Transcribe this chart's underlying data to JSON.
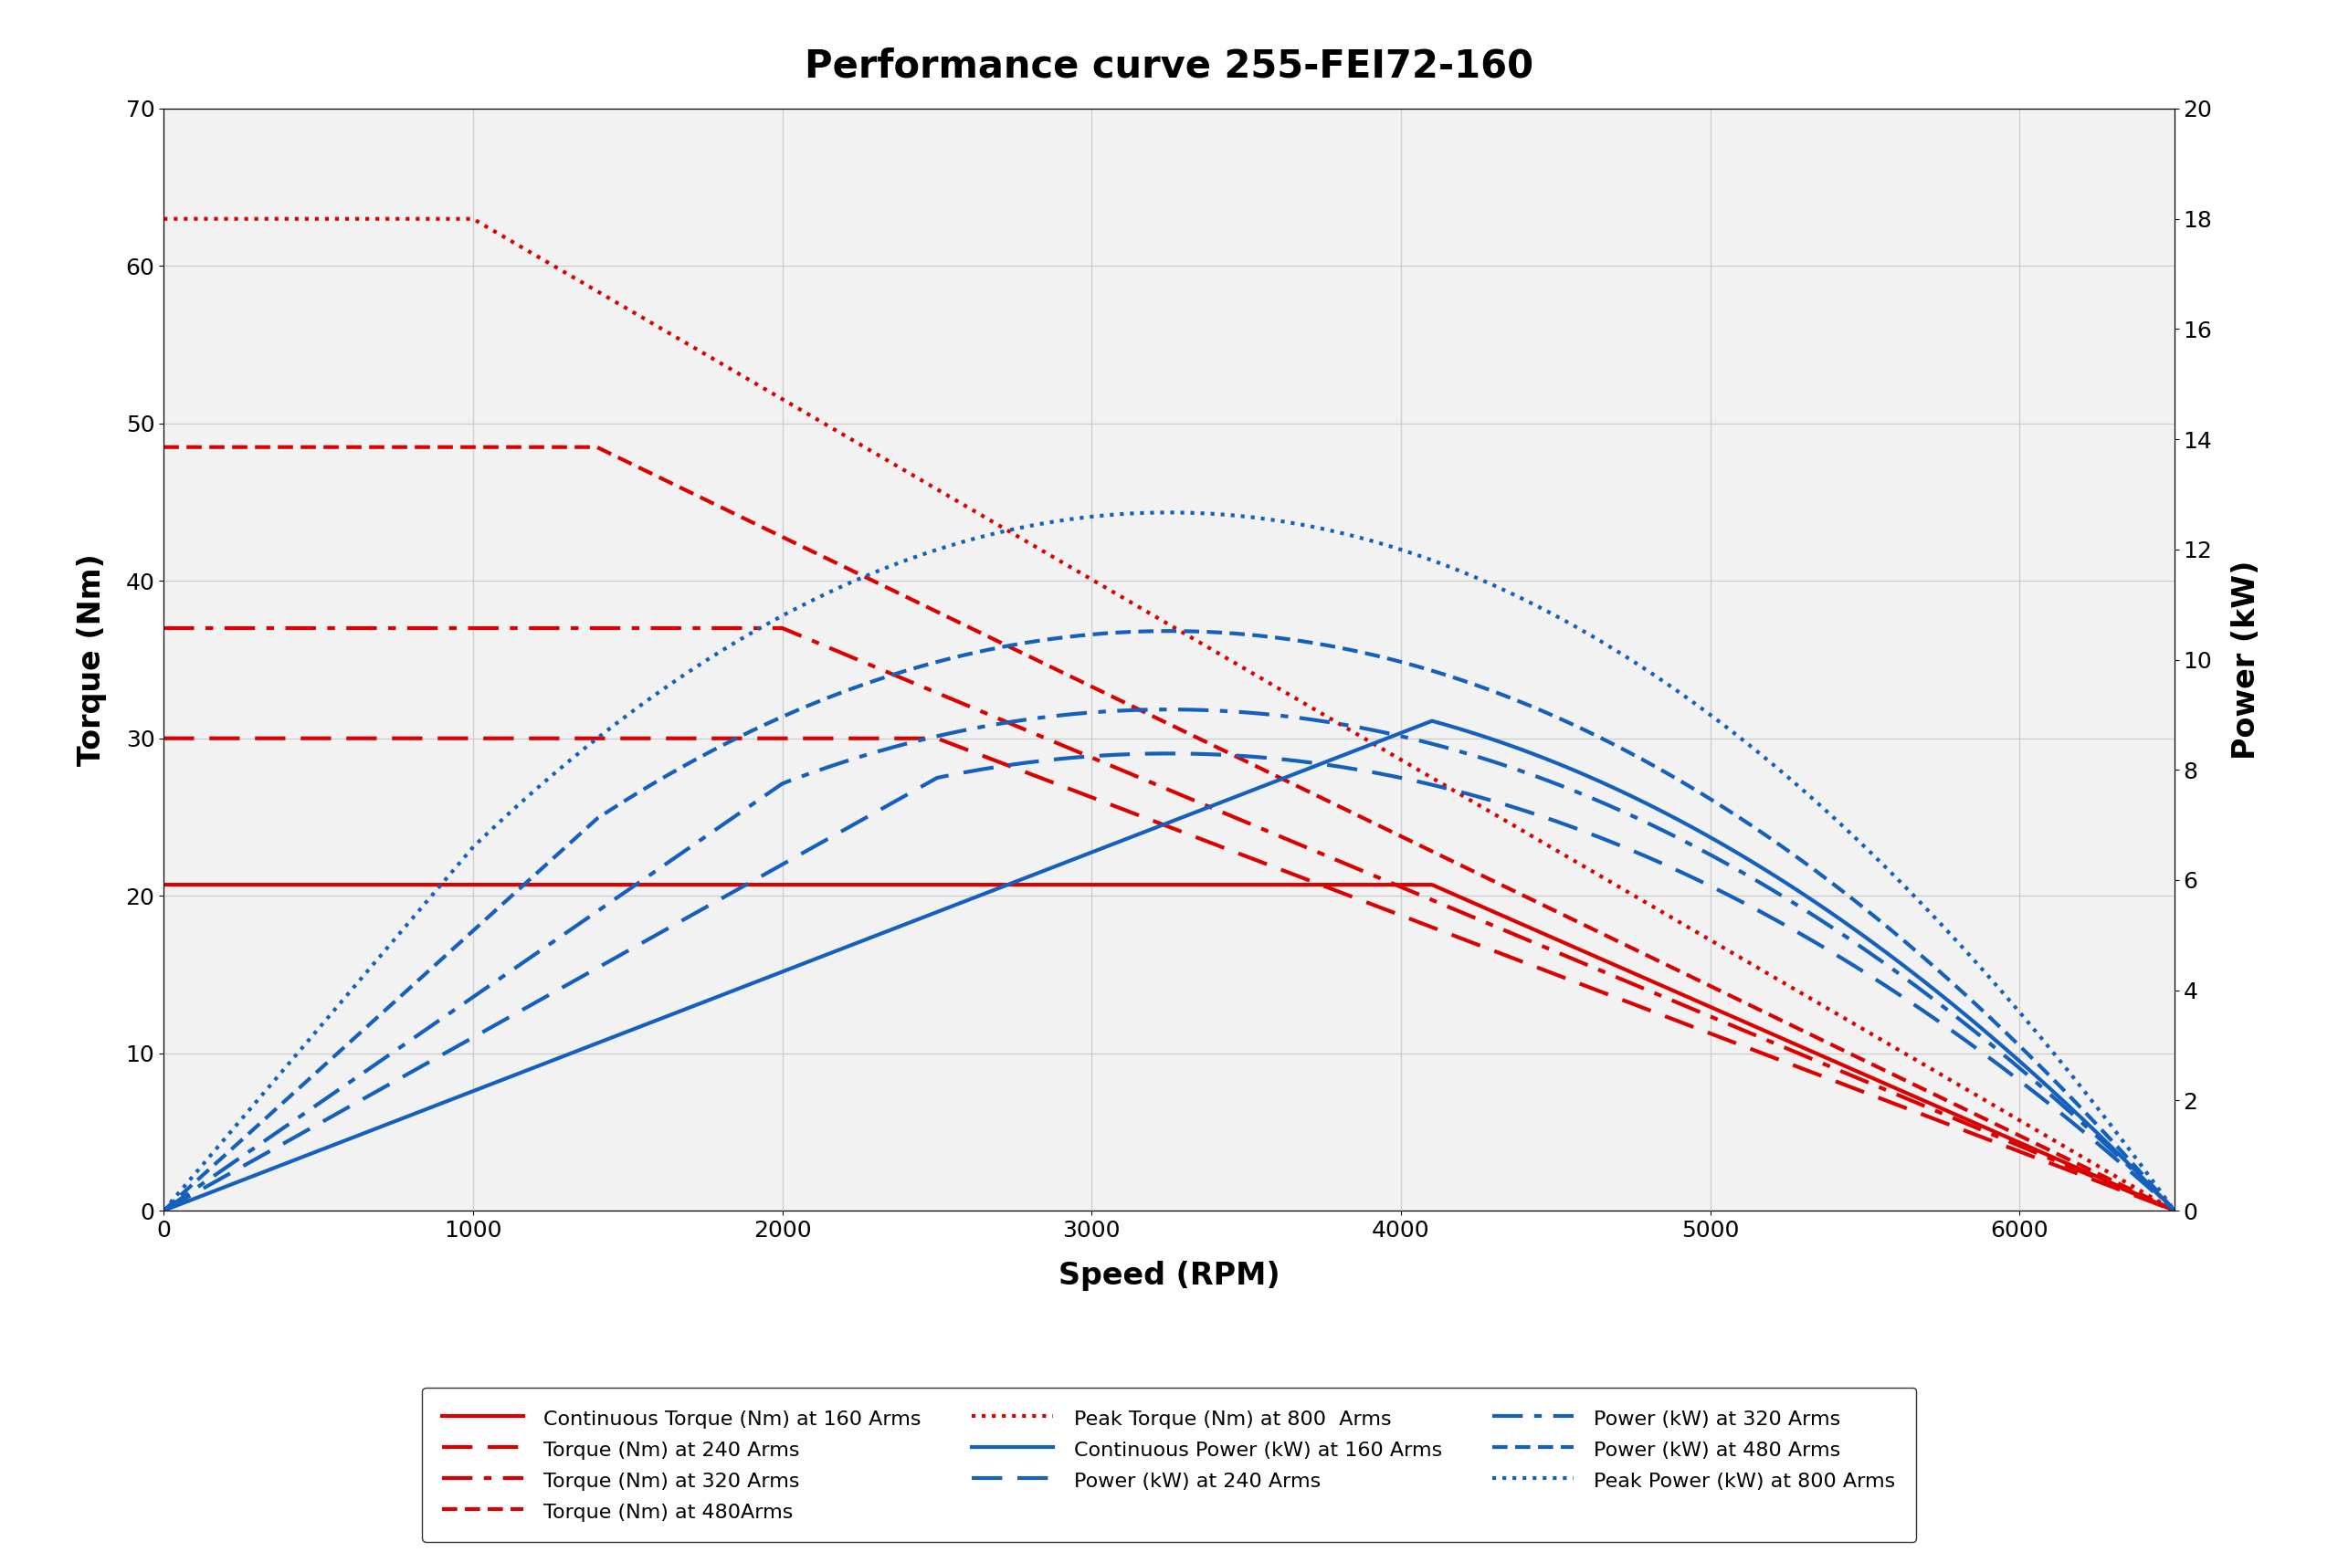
{
  "title": "Performance curve 255-FEI72-160",
  "xlabel": "Speed (RPM)",
  "ylabel_left": "Torque (Nm)",
  "ylabel_right": "Power (kW)",
  "xlim": [
    0,
    6500
  ],
  "ylim_torque": [
    0,
    70
  ],
  "ylim_power": [
    0,
    20
  ],
  "background_color": "#ffffff",
  "plot_bg_color": "#f2f2f2",
  "grid_color": "#cccccc",
  "red": "#dd0000",
  "blue": "#1560bd",
  "curves_torque": [
    {
      "flat_torque": 20.7,
      "flat_end_rpm": 4100,
      "end_rpm": 6500,
      "color": "#dd0000",
      "ls": "solid",
      "lw": 3.0,
      "label": "Continuous Torque (Nm) at 160 Arms"
    },
    {
      "flat_torque": 30.0,
      "flat_end_rpm": 2500,
      "end_rpm": 6500,
      "color": "#dd0000",
      "ls": [
        8,
        4
      ],
      "lw": 3.0,
      "label": "Torque (Nm) at 240 Arms"
    },
    {
      "flat_torque": 37.0,
      "flat_end_rpm": 2000,
      "end_rpm": 6500,
      "color": "#dd0000",
      "ls": [
        8,
        3,
        2,
        3
      ],
      "lw": 3.0,
      "label": "Torque (Nm) at 320 Arms"
    },
    {
      "flat_torque": 48.5,
      "flat_end_rpm": 1400,
      "end_rpm": 6500,
      "color": "#dd0000",
      "ls": [
        4,
        2
      ],
      "lw": 3.0,
      "label": "Torque (Nm) at 480Arms"
    },
    {
      "flat_torque": 63.0,
      "flat_end_rpm": 1000,
      "end_rpm": 6500,
      "color": "#dd0000",
      "ls": "dotted",
      "lw": 3.0,
      "label": "Peak Torque (Nm) at 800  Arms"
    }
  ],
  "curves_power": [
    {
      "flat_torque": 20.7,
      "flat_end_rpm": 4100,
      "end_rpm": 6500,
      "color": "#1560bd",
      "ls": "solid",
      "lw": 3.0,
      "label": "Continuous Power (kW) at 160 Arms"
    },
    {
      "flat_torque": 30.0,
      "flat_end_rpm": 2500,
      "end_rpm": 6500,
      "color": "#1560bd",
      "ls": [
        8,
        4
      ],
      "lw": 3.0,
      "label": "Power (kW) at 240 Arms"
    },
    {
      "flat_torque": 37.0,
      "flat_end_rpm": 2000,
      "end_rpm": 6500,
      "color": "#1560bd",
      "ls": [
        8,
        3,
        2,
        3
      ],
      "lw": 3.0,
      "label": "Power (kW) at 320 Arms"
    },
    {
      "flat_torque": 48.5,
      "flat_end_rpm": 1400,
      "end_rpm": 6500,
      "color": "#1560bd",
      "ls": [
        4,
        2
      ],
      "lw": 3.0,
      "label": "Power (kW) at 480 Arms"
    },
    {
      "flat_torque": 63.0,
      "flat_end_rpm": 1000,
      "end_rpm": 6500,
      "color": "#1560bd",
      "ls": "dotted",
      "lw": 3.0,
      "label": "Peak Power (kW) at 800 Arms"
    }
  ]
}
